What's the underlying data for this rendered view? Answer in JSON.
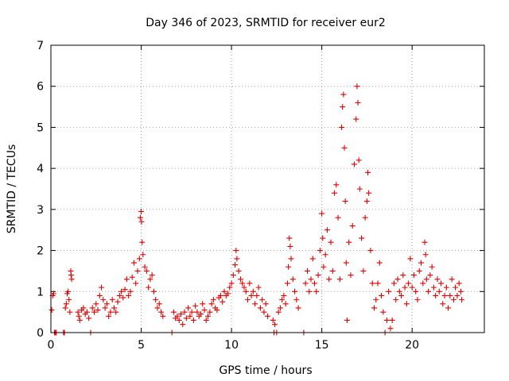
{
  "chart_data": {
    "type": "scatter",
    "title": "Day 346 of 2023, SRMTID for receiver eur2",
    "xlabel": "GPS time / hours",
    "ylabel": "SRMTID / TECUs",
    "xlim": [
      0,
      24
    ],
    "ylim": [
      0,
      7
    ],
    "x_ticks": [
      0,
      5,
      10,
      15,
      20
    ],
    "x_tick_labels": [
      "0",
      "5",
      "10",
      "15",
      "20"
    ],
    "y_ticks": [
      0,
      1,
      2,
      3,
      4,
      5,
      6,
      7
    ],
    "y_tick_labels": [
      "0",
      "1",
      "2",
      "3",
      "4",
      "5",
      "6",
      "7"
    ],
    "grid": true,
    "marker": "plus",
    "color": "#e00000",
    "series": [
      {
        "name": "SRMTID",
        "points": [
          [
            0.05,
            0.55
          ],
          [
            0.1,
            0.9
          ],
          [
            0.15,
            0.95
          ],
          [
            0.2,
            0.0
          ],
          [
            0.25,
            0.0
          ],
          [
            0.3,
            0.0
          ],
          [
            0.7,
            0.0
          ],
          [
            0.75,
            0.0
          ],
          [
            0.8,
            0.6
          ],
          [
            0.85,
            0.7
          ],
          [
            0.9,
            0.95
          ],
          [
            0.95,
            1.0
          ],
          [
            1.0,
            0.8
          ],
          [
            1.05,
            0.5
          ],
          [
            1.1,
            1.5
          ],
          [
            1.12,
            1.4
          ],
          [
            1.15,
            1.3
          ],
          [
            1.5,
            0.5
          ],
          [
            1.55,
            0.4
          ],
          [
            1.6,
            0.3
          ],
          [
            1.7,
            0.55
          ],
          [
            1.8,
            0.6
          ],
          [
            1.9,
            0.45
          ],
          [
            2.0,
            0.5
          ],
          [
            2.1,
            0.35
          ],
          [
            2.2,
            0.0
          ],
          [
            2.3,
            0.6
          ],
          [
            2.4,
            0.5
          ],
          [
            2.5,
            0.7
          ],
          [
            2.6,
            0.55
          ],
          [
            2.7,
            0.9
          ],
          [
            2.8,
            1.1
          ],
          [
            2.9,
            0.8
          ],
          [
            3.0,
            0.6
          ],
          [
            3.1,
            0.7
          ],
          [
            3.2,
            0.4
          ],
          [
            3.3,
            0.5
          ],
          [
            3.4,
            0.8
          ],
          [
            3.5,
            0.6
          ],
          [
            3.6,
            0.5
          ],
          [
            3.7,
            0.75
          ],
          [
            3.8,
            0.9
          ],
          [
            3.9,
            1.0
          ],
          [
            4.0,
            0.85
          ],
          [
            4.1,
            1.05
          ],
          [
            4.2,
            1.3
          ],
          [
            4.3,
            0.9
          ],
          [
            4.4,
            1.0
          ],
          [
            4.5,
            1.35
          ],
          [
            4.6,
            1.7
          ],
          [
            4.7,
            1.2
          ],
          [
            4.8,
            1.5
          ],
          [
            4.9,
            1.8
          ],
          [
            4.95,
            2.8
          ],
          [
            5.0,
            2.95
          ],
          [
            5.02,
            2.7
          ],
          [
            5.05,
            2.2
          ],
          [
            5.1,
            1.9
          ],
          [
            5.2,
            1.6
          ],
          [
            5.3,
            1.5
          ],
          [
            5.4,
            1.1
          ],
          [
            5.5,
            1.3
          ],
          [
            5.6,
            1.4
          ],
          [
            5.7,
            1.0
          ],
          [
            5.8,
            0.8
          ],
          [
            5.9,
            0.6
          ],
          [
            6.0,
            0.7
          ],
          [
            6.1,
            0.5
          ],
          [
            6.2,
            0.4
          ],
          [
            6.7,
            0.0
          ],
          [
            6.8,
            0.5
          ],
          [
            6.9,
            0.35
          ],
          [
            7.0,
            0.4
          ],
          [
            7.1,
            0.3
          ],
          [
            7.2,
            0.45
          ],
          [
            7.3,
            0.2
          ],
          [
            7.4,
            0.5
          ],
          [
            7.5,
            0.35
          ],
          [
            7.6,
            0.6
          ],
          [
            7.7,
            0.4
          ],
          [
            7.8,
            0.5
          ],
          [
            7.9,
            0.3
          ],
          [
            8.0,
            0.65
          ],
          [
            8.1,
            0.5
          ],
          [
            8.2,
            0.4
          ],
          [
            8.3,
            0.45
          ],
          [
            8.4,
            0.7
          ],
          [
            8.5,
            0.55
          ],
          [
            8.6,
            0.3
          ],
          [
            8.7,
            0.4
          ],
          [
            8.8,
            0.5
          ],
          [
            8.9,
            0.7
          ],
          [
            9.0,
            0.8
          ],
          [
            9.1,
            0.6
          ],
          [
            9.2,
            0.55
          ],
          [
            9.3,
            0.85
          ],
          [
            9.4,
            0.9
          ],
          [
            9.5,
            0.75
          ],
          [
            9.6,
            1.0
          ],
          [
            9.7,
            0.9
          ],
          [
            9.8,
            0.95
          ],
          [
            9.9,
            1.1
          ],
          [
            10.0,
            1.2
          ],
          [
            10.1,
            1.4
          ],
          [
            10.2,
            1.65
          ],
          [
            10.25,
            2.0
          ],
          [
            10.3,
            1.8
          ],
          [
            10.4,
            1.5
          ],
          [
            10.5,
            1.3
          ],
          [
            10.6,
            1.2
          ],
          [
            10.7,
            1.1
          ],
          [
            10.8,
            1.0
          ],
          [
            10.9,
            0.8
          ],
          [
            11.0,
            1.2
          ],
          [
            11.1,
            0.9
          ],
          [
            11.2,
            1.0
          ],
          [
            11.3,
            0.7
          ],
          [
            11.4,
            0.9
          ],
          [
            11.5,
            1.1
          ],
          [
            11.6,
            0.6
          ],
          [
            11.7,
            0.8
          ],
          [
            11.8,
            0.5
          ],
          [
            11.9,
            0.7
          ],
          [
            12.0,
            0.4
          ],
          [
            12.3,
            0.3
          ],
          [
            12.35,
            0.0
          ],
          [
            12.4,
            0.2
          ],
          [
            12.5,
            0.0
          ],
          [
            12.6,
            0.5
          ],
          [
            12.7,
            0.6
          ],
          [
            12.8,
            0.8
          ],
          [
            12.9,
            0.9
          ],
          [
            13.0,
            0.7
          ],
          [
            13.1,
            1.2
          ],
          [
            13.15,
            1.6
          ],
          [
            13.2,
            2.3
          ],
          [
            13.25,
            2.1
          ],
          [
            13.3,
            1.8
          ],
          [
            13.4,
            1.3
          ],
          [
            13.5,
            1.0
          ],
          [
            13.6,
            0.8
          ],
          [
            13.7,
            0.6
          ],
          [
            14.0,
            0.0
          ],
          [
            14.1,
            1.2
          ],
          [
            14.2,
            1.5
          ],
          [
            14.3,
            1.0
          ],
          [
            14.4,
            1.3
          ],
          [
            14.5,
            1.8
          ],
          [
            14.6,
            1.2
          ],
          [
            14.7,
            1.0
          ],
          [
            14.8,
            1.4
          ],
          [
            14.9,
            2.0
          ],
          [
            15.0,
            2.9
          ],
          [
            15.05,
            2.3
          ],
          [
            15.1,
            1.6
          ],
          [
            15.2,
            1.9
          ],
          [
            15.3,
            2.5
          ],
          [
            15.4,
            1.3
          ],
          [
            15.5,
            2.2
          ],
          [
            15.6,
            1.5
          ],
          [
            15.7,
            3.4
          ],
          [
            15.8,
            3.6
          ],
          [
            15.9,
            2.8
          ],
          [
            16.0,
            1.3
          ],
          [
            16.1,
            5.0
          ],
          [
            16.15,
            5.5
          ],
          [
            16.2,
            5.8
          ],
          [
            16.25,
            4.5
          ],
          [
            16.3,
            3.2
          ],
          [
            16.35,
            1.7
          ],
          [
            16.4,
            0.3
          ],
          [
            16.5,
            2.2
          ],
          [
            16.6,
            1.4
          ],
          [
            16.7,
            2.6
          ],
          [
            16.8,
            4.1
          ],
          [
            16.9,
            5.2
          ],
          [
            16.95,
            6.0
          ],
          [
            17.0,
            5.6
          ],
          [
            17.05,
            4.2
          ],
          [
            17.1,
            3.5
          ],
          [
            17.2,
            2.3
          ],
          [
            17.3,
            1.5
          ],
          [
            17.4,
            2.8
          ],
          [
            17.5,
            3.2
          ],
          [
            17.55,
            3.9
          ],
          [
            17.6,
            3.4
          ],
          [
            17.7,
            2.0
          ],
          [
            17.8,
            1.2
          ],
          [
            17.9,
            0.6
          ],
          [
            18.0,
            0.8
          ],
          [
            18.1,
            1.2
          ],
          [
            18.2,
            1.7
          ],
          [
            18.3,
            0.9
          ],
          [
            18.4,
            0.5
          ],
          [
            18.5,
            0.0
          ],
          [
            18.6,
            0.3
          ],
          [
            18.7,
            1.0
          ],
          [
            18.8,
            0.1
          ],
          [
            18.9,
            0.3
          ],
          [
            19.0,
            1.2
          ],
          [
            19.1,
            0.8
          ],
          [
            19.2,
            1.3
          ],
          [
            19.3,
            1.0
          ],
          [
            19.4,
            0.9
          ],
          [
            19.5,
            1.4
          ],
          [
            19.6,
            1.1
          ],
          [
            19.7,
            0.7
          ],
          [
            19.8,
            1.2
          ],
          [
            19.9,
            1.8
          ],
          [
            20.0,
            1.1
          ],
          [
            20.1,
            1.4
          ],
          [
            20.2,
            1.0
          ],
          [
            20.3,
            0.8
          ],
          [
            20.4,
            1.5
          ],
          [
            20.5,
            1.7
          ],
          [
            20.6,
            1.2
          ],
          [
            20.7,
            2.2
          ],
          [
            20.75,
            1.9
          ],
          [
            20.8,
            1.3
          ],
          [
            20.9,
            1.0
          ],
          [
            21.0,
            1.4
          ],
          [
            21.1,
            1.6
          ],
          [
            21.2,
            1.1
          ],
          [
            21.3,
            0.9
          ],
          [
            21.4,
            1.3
          ],
          [
            21.5,
            1.0
          ],
          [
            21.6,
            1.2
          ],
          [
            21.7,
            0.7
          ],
          [
            21.8,
            0.9
          ],
          [
            21.9,
            1.1
          ],
          [
            22.0,
            0.6
          ],
          [
            22.1,
            0.9
          ],
          [
            22.2,
            1.3
          ],
          [
            22.3,
            0.8
          ],
          [
            22.4,
            1.1
          ],
          [
            22.5,
            0.9
          ],
          [
            22.6,
            1.2
          ],
          [
            22.7,
            1.0
          ],
          [
            22.75,
            0.8
          ]
        ]
      }
    ]
  }
}
